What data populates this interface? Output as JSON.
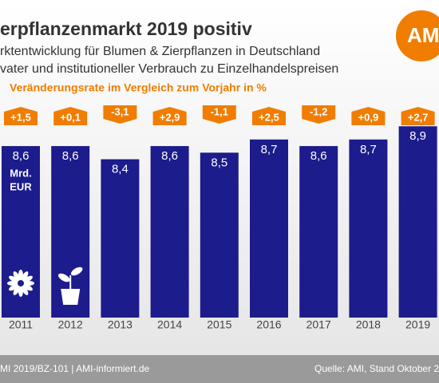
{
  "chart_data": {
    "type": "bar",
    "title": "erpflanzenmarkt 2019 positiv",
    "subtitle": [
      "rktentwicklung für Blumen & Zierpflanzen in Deutschland",
      "vater und institutioneller Verbrauch zu Einzelhandelspreisen"
    ],
    "annotation": "Veränderungsrate im Vergleich zum Vorjahr in %",
    "logo": "AM",
    "unit": [
      "Mrd.",
      "EUR"
    ],
    "categories": [
      "2011",
      "2012",
      "2013",
      "2014",
      "2015",
      "2016",
      "2017",
      "2018",
      "2019"
    ],
    "values": [
      8.6,
      8.6,
      8.4,
      8.6,
      8.5,
      8.7,
      8.6,
      8.7,
      8.9
    ],
    "value_labels": [
      "8,6",
      "8,6",
      "8,4",
      "8,6",
      "8,5",
      "8,7",
      "8,6",
      "8,7",
      "8,9"
    ],
    "color": "#1c1c8c",
    "ylim": [
      6,
      9
    ],
    "changes": {
      "color": "#f07d00",
      "values": [
        1.5,
        0.1,
        -3.1,
        2.9,
        -1.1,
        2.5,
        -1.2,
        0.9,
        2.7
      ],
      "value_labels": [
        "+1,5",
        "+0,1",
        "-3,1",
        "+2,9",
        "-1,1",
        "+2,5",
        "-1,2",
        "+0,9",
        "+2,7"
      ]
    },
    "footer": {
      "left": "MI 2019/BZ-101 | AMI-informiert.de",
      "right": "Quelle: AMI, Stand Oktober 2"
    }
  }
}
